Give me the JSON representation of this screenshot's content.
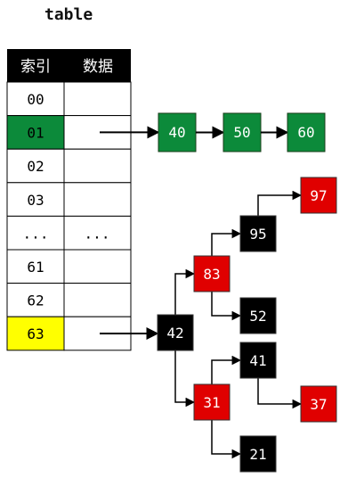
{
  "title": "table",
  "headers": {
    "index": "索引",
    "data": "数据"
  },
  "rows": [
    {
      "index": "00",
      "data": ""
    },
    {
      "index": "01",
      "data": "",
      "highlight": "#0c8a3a"
    },
    {
      "index": "02",
      "data": ""
    },
    {
      "index": "03",
      "data": ""
    },
    {
      "index": "...",
      "data": "..."
    },
    {
      "index": "61",
      "data": ""
    },
    {
      "index": "62",
      "data": ""
    },
    {
      "index": "63",
      "data": "",
      "highlight": "#ffff00"
    }
  ],
  "linked_list": [
    "40",
    "50",
    "60"
  ],
  "tree_nodes": [
    {
      "id": "n42",
      "label": "42",
      "color": "black"
    },
    {
      "id": "n83",
      "label": "83",
      "color": "red"
    },
    {
      "id": "n95",
      "label": "95",
      "color": "black"
    },
    {
      "id": "n97",
      "label": "97",
      "color": "red"
    },
    {
      "id": "n52",
      "label": "52",
      "color": "black"
    },
    {
      "id": "n31",
      "label": "31",
      "color": "red"
    },
    {
      "id": "n41",
      "label": "41",
      "color": "black"
    },
    {
      "id": "n37",
      "label": "37",
      "color": "red"
    },
    {
      "id": "n21",
      "label": "21",
      "color": "black"
    }
  ],
  "colors": {
    "header_bg": "#000000",
    "list_node": "#0c8a3a",
    "red_node": "#e00000",
    "black_node": "#000000"
  }
}
